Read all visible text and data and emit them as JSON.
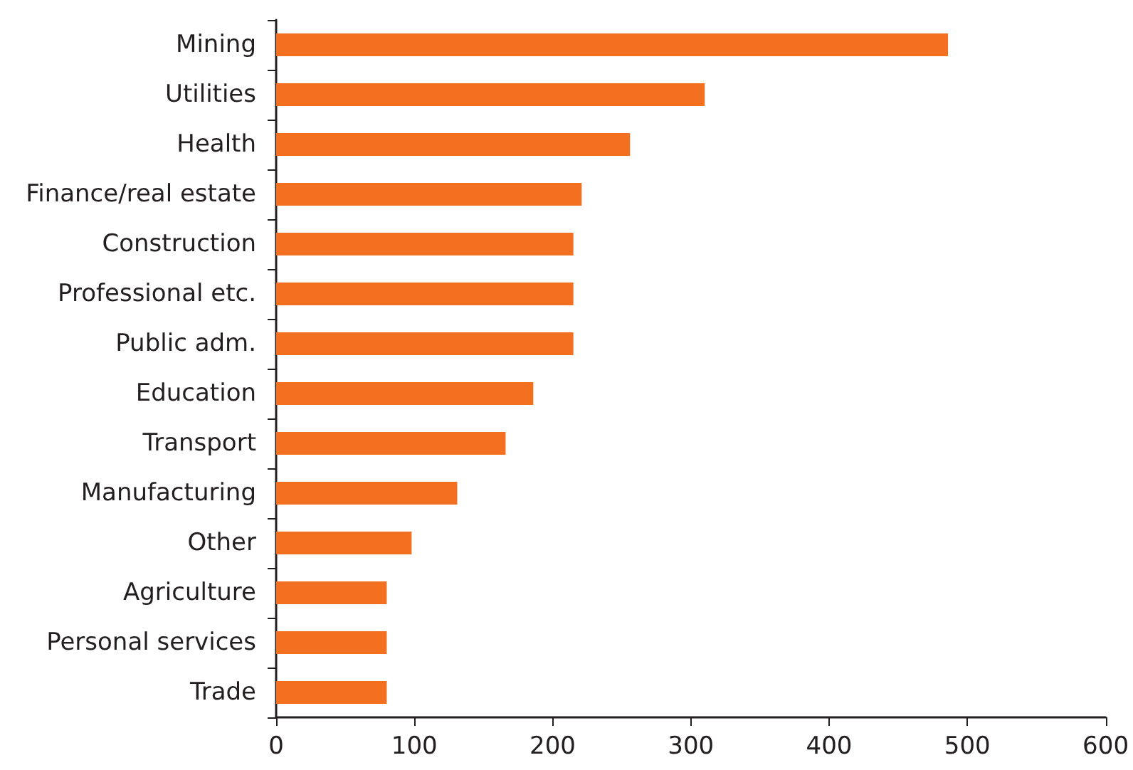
{
  "chart_data": {
    "type": "bar",
    "orientation": "horizontal",
    "categories": [
      "Mining",
      "Utilities",
      "Health",
      "Finance/real estate",
      "Construction",
      "Professional etc.",
      "Public adm.",
      "Education",
      "Transport",
      "Manufacturing",
      "Other",
      "Agriculture",
      "Personal services",
      "Trade"
    ],
    "values": [
      486,
      310,
      256,
      221,
      215,
      215,
      215,
      186,
      166,
      131,
      98,
      80,
      80,
      80
    ],
    "color": "#f37021",
    "xlim": [
      0,
      600
    ],
    "xticks": [
      0,
      100,
      200,
      300,
      400,
      500,
      600
    ],
    "grid": false
  }
}
